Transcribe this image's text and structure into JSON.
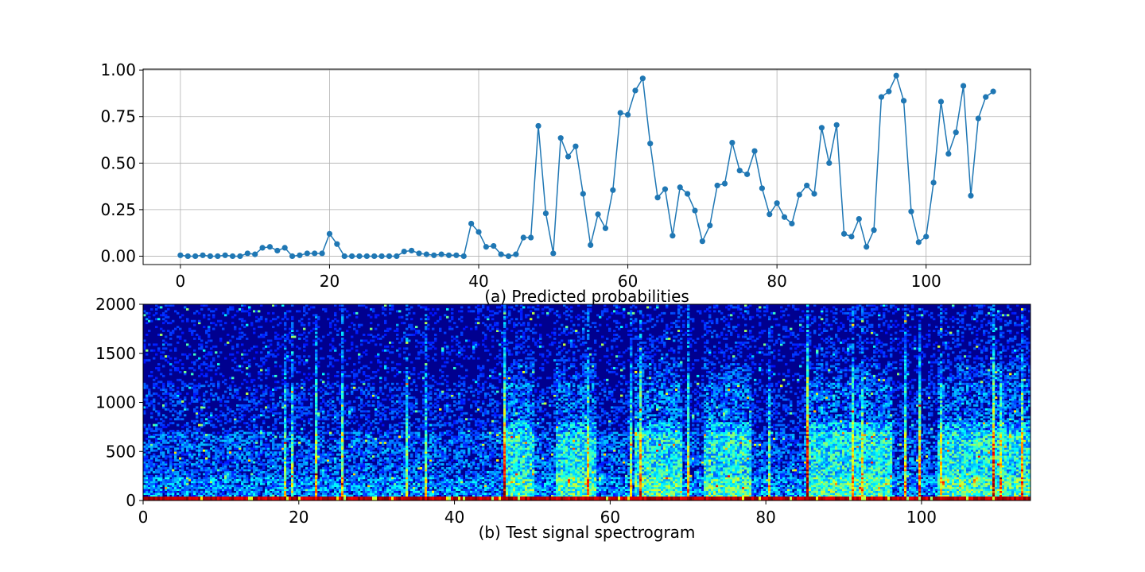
{
  "chart_data": [
    {
      "type": "line",
      "caption": "(a) Predicted probabilities",
      "xlim": [
        -5,
        114
      ],
      "ylim": [
        -0.045,
        1.005
      ],
      "xticks": [
        0,
        20,
        40,
        60,
        80,
        100
      ],
      "xtick_labels": [
        "0",
        "20",
        "40",
        "60",
        "80",
        "100"
      ],
      "yticks": [
        0.0,
        0.25,
        0.5,
        0.75,
        1.0
      ],
      "ytick_labels": [
        "0.00",
        "0.25",
        "0.50",
        "0.75",
        "1.00"
      ],
      "grid": true,
      "marker": "circle",
      "color": "#1f77b4",
      "x": [
        0,
        1,
        2,
        3,
        4,
        5,
        6,
        7,
        8,
        9,
        10,
        11,
        12,
        13,
        14,
        15,
        16,
        17,
        18,
        19,
        20,
        21,
        22,
        23,
        24,
        25,
        26,
        27,
        28,
        29,
        30,
        31,
        32,
        33,
        34,
        35,
        36,
        37,
        38,
        39,
        40,
        41,
        42,
        43,
        44,
        45,
        46,
        47,
        48,
        49,
        50,
        51,
        52,
        53,
        54,
        55,
        56,
        57,
        58,
        59,
        60,
        61,
        62,
        63,
        64,
        65,
        66,
        67,
        68,
        69,
        70,
        71,
        72,
        73,
        74,
        75,
        76,
        77,
        78,
        79,
        80,
        81,
        82,
        83,
        84,
        85,
        86,
        87,
        88,
        89,
        90,
        91,
        92,
        93,
        94,
        95,
        96,
        97,
        98,
        99,
        100,
        101,
        102,
        103,
        104,
        105,
        106,
        107,
        108,
        109
      ],
      "y": [
        0.005,
        0.0,
        0.0,
        0.005,
        0.0,
        0.0,
        0.005,
        0.0,
        0.0,
        0.015,
        0.01,
        0.045,
        0.05,
        0.03,
        0.045,
        0.0,
        0.005,
        0.015,
        0.015,
        0.015,
        0.12,
        0.065,
        0.0,
        0.0,
        0.0,
        0.0,
        0.0,
        0.0,
        0.0,
        0.0,
        0.025,
        0.03,
        0.015,
        0.01,
        0.005,
        0.01,
        0.005,
        0.005,
        0.0,
        0.175,
        0.13,
        0.05,
        0.055,
        0.01,
        0.0,
        0.01,
        0.1,
        0.1,
        0.7,
        0.23,
        0.015,
        0.635,
        0.535,
        0.59,
        0.335,
        0.06,
        0.225,
        0.15,
        0.355,
        0.77,
        0.76,
        0.89,
        0.955,
        0.605,
        0.315,
        0.36,
        0.11,
        0.37,
        0.335,
        0.245,
        0.08,
        0.165,
        0.38,
        0.39,
        0.61,
        0.46,
        0.44,
        0.565,
        0.365,
        0.225,
        0.285,
        0.21,
        0.175,
        0.33,
        0.38,
        0.335,
        0.69,
        0.5,
        0.705,
        0.12,
        0.105,
        0.2,
        0.05,
        0.14,
        0.855,
        0.885,
        0.97,
        0.835,
        0.24,
        0.075,
        0.105,
        0.395,
        0.83,
        0.55,
        0.665,
        0.915,
        0.325,
        0.74,
        0.855,
        0.885
      ]
    },
    {
      "type": "heatmap",
      "caption": "(b) Test signal spectrogram",
      "xlim": [
        0,
        114
      ],
      "ylim": [
        0,
        2000
      ],
      "xticks": [
        0,
        20,
        40,
        60,
        80,
        100
      ],
      "xtick_labels": [
        "0",
        "20",
        "40",
        "60",
        "80",
        "100"
      ],
      "yticks": [
        0,
        500,
        1000,
        1500,
        2000
      ],
      "ytick_labels": [
        "0",
        "500",
        "1000",
        "1500",
        "2000"
      ],
      "colormap": "jet",
      "background_color": "#00008f",
      "active_time_ranges": [
        [
          46,
          50
        ],
        [
          53,
          58
        ],
        [
          63,
          69
        ],
        [
          72,
          78
        ],
        [
          85,
          96
        ],
        [
          102,
          114
        ]
      ],
      "low_band_max_hz": 40
    }
  ]
}
